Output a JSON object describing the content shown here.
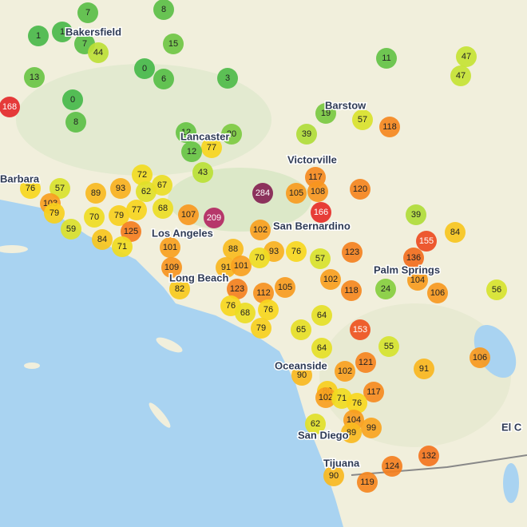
{
  "map": {
    "cities": [
      "Bakersfield",
      "Lancaster",
      "Barstow",
      "Victorville",
      "Los Angeles",
      "San Bernardino",
      "Long Beach",
      "Palm Springs",
      "Oceanside",
      "San Diego",
      "Tijuana",
      "Barbara",
      "El C"
    ],
    "markers": [
      7,
      8,
      1,
      1,
      15,
      7,
      44,
      0,
      6,
      3,
      13,
      0,
      8,
      168,
      11,
      47,
      47,
      19,
      57,
      118,
      39,
      12,
      20,
      77,
      12,
      43,
      117,
      105,
      108,
      120,
      284,
      166,
      39,
      84,
      155,
      136,
      104,
      106,
      56,
      76,
      57,
      103,
      89,
      93,
      72,
      62,
      67,
      79,
      70,
      79,
      77,
      68,
      107,
      209,
      59,
      84,
      125,
      71,
      101,
      109,
      82,
      88,
      91,
      101,
      102,
      93,
      70,
      76,
      57,
      123,
      102,
      118,
      24,
      123,
      112,
      105,
      76,
      68,
      76,
      79,
      65,
      64,
      153,
      55,
      64,
      121,
      102,
      91,
      106,
      90,
      80,
      117,
      102,
      71,
      76,
      104,
      99,
      62,
      89,
      132,
      124,
      90,
      119
    ]
  }
}
